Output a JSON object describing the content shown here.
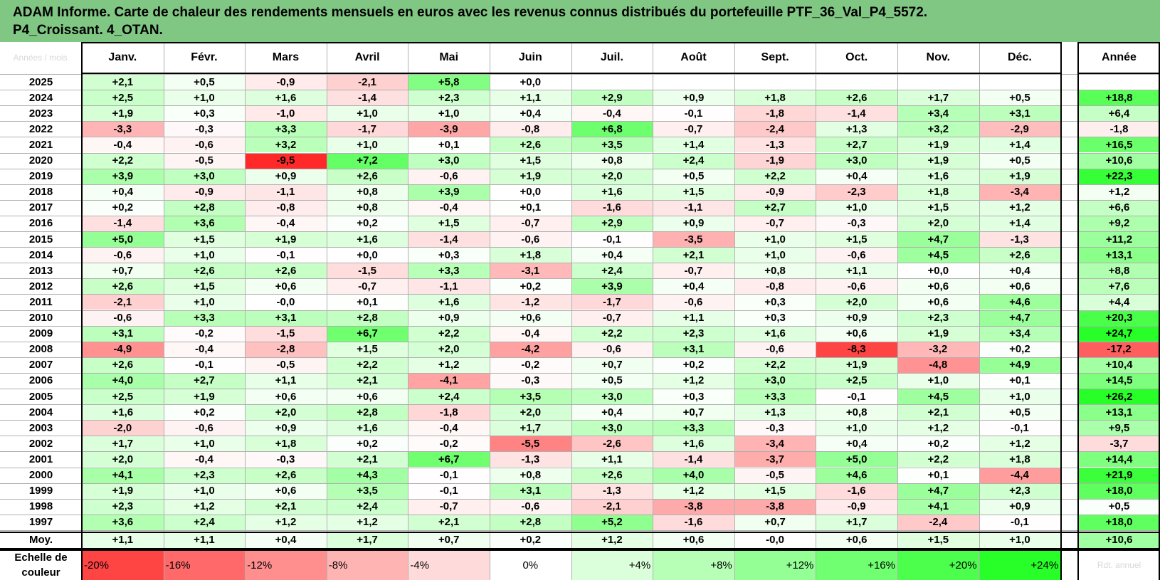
{
  "title_line1": "ADAM Informe. Carte de chaleur des rendements mensuels en euros avec les revenus connus distribués du portefeuille PTF_36_Val_P4_5572.",
  "title_line2": "P4_Croissant. 4_OTAN.",
  "corner_label": "Années / mois",
  "scale_label": "Echelle de couleur",
  "ghost_label": "Rdt. annuel",
  "chart_data": {
    "type": "heatmap",
    "columns": [
      "Janv.",
      "Févr.",
      "Mars",
      "Avril",
      "Mai",
      "Juin",
      "Juil.",
      "Août",
      "Sept.",
      "Oct.",
      "Nov.",
      "Déc."
    ],
    "year_column": "Année",
    "average_row_label": "Moy.",
    "rows": [
      {
        "label": "2025",
        "values": [
          "+2,1",
          "+0,5",
          "-0,9",
          "-2,1",
          "+5,8",
          "+0,0",
          "",
          "",
          "",
          "",
          "",
          ""
        ],
        "year": ""
      },
      {
        "label": "2024",
        "values": [
          "+2,5",
          "+1,0",
          "+1,6",
          "-1,4",
          "+2,3",
          "+1,1",
          "+2,9",
          "+0,9",
          "+1,8",
          "+2,6",
          "+1,7",
          "+0,5"
        ],
        "year": "+18,8"
      },
      {
        "label": "2023",
        "values": [
          "+1,9",
          "+0,3",
          "-1,0",
          "+1,0",
          "+1,0",
          "+0,4",
          "-0,4",
          "-0,1",
          "-1,8",
          "-1,4",
          "+3,4",
          "+3,1"
        ],
        "year": "+6,4"
      },
      {
        "label": "2022",
        "values": [
          "-3,3",
          "-0,3",
          "+3,3",
          "-1,7",
          "-3,9",
          "-0,8",
          "+6,8",
          "-0,7",
          "-2,4",
          "+1,3",
          "+3,2",
          "-2,9"
        ],
        "year": "-1,8"
      },
      {
        "label": "2021",
        "values": [
          "-0,4",
          "-0,6",
          "+3,2",
          "+1,0",
          "+0,1",
          "+2,6",
          "+3,5",
          "+1,4",
          "-1,3",
          "+2,7",
          "+1,9",
          "+1,4"
        ],
        "year": "+16,5"
      },
      {
        "label": "2020",
        "values": [
          "+2,2",
          "-0,5",
          "-9,5",
          "+7,2",
          "+3,0",
          "+1,5",
          "+0,8",
          "+2,4",
          "-1,9",
          "+3,0",
          "+1,9",
          "+0,5"
        ],
        "year": "+10,6"
      },
      {
        "label": "2019",
        "values": [
          "+3,9",
          "+3,0",
          "+0,9",
          "+2,6",
          "-0,6",
          "+1,9",
          "+2,0",
          "+0,5",
          "+2,2",
          "+0,4",
          "+1,6",
          "+1,9"
        ],
        "year": "+22,3"
      },
      {
        "label": "2018",
        "values": [
          "+0,4",
          "-0,9",
          "-1,1",
          "+0,8",
          "+3,9",
          "+0,0",
          "+1,6",
          "+1,5",
          "-0,9",
          "-2,3",
          "+1,8",
          "-3,4"
        ],
        "year": "+1,2"
      },
      {
        "label": "2017",
        "values": [
          "+0,2",
          "+2,8",
          "-0,8",
          "+0,8",
          "-0,4",
          "+0,1",
          "-1,6",
          "-1,1",
          "+2,7",
          "+1,0",
          "+1,5",
          "+1,2"
        ],
        "year": "+6,6"
      },
      {
        "label": "2016",
        "values": [
          "-1,4",
          "+3,6",
          "-0,4",
          "+0,2",
          "+1,5",
          "-0,7",
          "+2,9",
          "+0,9",
          "-0,7",
          "-0,3",
          "+2,0",
          "+1,4"
        ],
        "year": "+9,2"
      },
      {
        "label": "2015",
        "values": [
          "+5,0",
          "+1,5",
          "+1,9",
          "+1,6",
          "-1,4",
          "-0,6",
          "-0,1",
          "-3,5",
          "+1,0",
          "+1,5",
          "+4,7",
          "-1,3"
        ],
        "year": "+11,2"
      },
      {
        "label": "2014",
        "values": [
          "-0,6",
          "+1,0",
          "-0,1",
          "+0,0",
          "+0,3",
          "+1,8",
          "+0,4",
          "+2,1",
          "+1,0",
          "-0,6",
          "+4,5",
          "+2,6"
        ],
        "year": "+13,1"
      },
      {
        "label": "2013",
        "values": [
          "+0,7",
          "+2,6",
          "+2,6",
          "-1,5",
          "+3,3",
          "-3,1",
          "+2,4",
          "-0,7",
          "+0,8",
          "+1,1",
          "+0,0",
          "+0,4"
        ],
        "year": "+8,8"
      },
      {
        "label": "2012",
        "values": [
          "+2,6",
          "+1,5",
          "+0,6",
          "-0,7",
          "-1,1",
          "+0,2",
          "+3,9",
          "+0,4",
          "-0,8",
          "-0,6",
          "+0,6",
          "+0,6"
        ],
        "year": "+7,6"
      },
      {
        "label": "2011",
        "values": [
          "-2,1",
          "+1,0",
          "-0,0",
          "+0,1",
          "+1,6",
          "-1,2",
          "-1,7",
          "-0,6",
          "+0,3",
          "+2,0",
          "+0,6",
          "+4,6"
        ],
        "year": "+4,4"
      },
      {
        "label": "2010",
        "values": [
          "-0,6",
          "+3,3",
          "+3,1",
          "+2,8",
          "+0,9",
          "+0,6",
          "-0,7",
          "+1,1",
          "+0,3",
          "+0,9",
          "+2,3",
          "+4,7"
        ],
        "year": "+20,3"
      },
      {
        "label": "2009",
        "values": [
          "+3,1",
          "-0,2",
          "-1,5",
          "+6,7",
          "+2,2",
          "-0,4",
          "+2,2",
          "+2,3",
          "+1,6",
          "+0,6",
          "+1,9",
          "+3,4"
        ],
        "year": "+24,7"
      },
      {
        "label": "2008",
        "values": [
          "-4,9",
          "-0,4",
          "-2,8",
          "+1,5",
          "+2,0",
          "-4,2",
          "-0,6",
          "+3,1",
          "-0,6",
          "-8,3",
          "-3,2",
          "+0,2"
        ],
        "year": "-17,2"
      },
      {
        "label": "2007",
        "values": [
          "+2,6",
          "-0,1",
          "-0,5",
          "+2,2",
          "+1,2",
          "-0,2",
          "+0,7",
          "+0,2",
          "+2,2",
          "+1,9",
          "-4,8",
          "+4,9"
        ],
        "year": "+10,4"
      },
      {
        "label": "2006",
        "values": [
          "+4,0",
          "+2,7",
          "+1,1",
          "+2,1",
          "-4,1",
          "-0,3",
          "+0,5",
          "+1,2",
          "+3,0",
          "+2,5",
          "+1,0",
          "+0,1"
        ],
        "year": "+14,5"
      },
      {
        "label": "2005",
        "values": [
          "+2,5",
          "+1,9",
          "+0,6",
          "+0,6",
          "+2,4",
          "+3,5",
          "+3,0",
          "+0,3",
          "+3,3",
          "-0,1",
          "+4,5",
          "+1,0"
        ],
        "year": "+26,2"
      },
      {
        "label": "2004",
        "values": [
          "+1,6",
          "+0,2",
          "+2,0",
          "+2,8",
          "-1,8",
          "+2,0",
          "+0,4",
          "+0,7",
          "+1,3",
          "+0,8",
          "+2,1",
          "+0,5"
        ],
        "year": "+13,1"
      },
      {
        "label": "2003",
        "values": [
          "-2,0",
          "-0,6",
          "+0,9",
          "+1,6",
          "-0,4",
          "+1,7",
          "+3,0",
          "+3,3",
          "-0,3",
          "+1,0",
          "+1,2",
          "-0,1"
        ],
        "year": "+9,5"
      },
      {
        "label": "2002",
        "values": [
          "+1,7",
          "+1,0",
          "+1,8",
          "+0,2",
          "-0,2",
          "-5,5",
          "-2,6",
          "+1,6",
          "-3,4",
          "+0,4",
          "+0,2",
          "+1,2"
        ],
        "year": "-3,7"
      },
      {
        "label": "2001",
        "values": [
          "+2,0",
          "-0,4",
          "-0,3",
          "+2,1",
          "+6,7",
          "-1,3",
          "+1,1",
          "-1,4",
          "-3,7",
          "+5,0",
          "+2,2",
          "+1,8"
        ],
        "year": "+14,4"
      },
      {
        "label": "2000",
        "values": [
          "+4,1",
          "+2,3",
          "+2,6",
          "+4,3",
          "-0,1",
          "+0,8",
          "+2,6",
          "+4,0",
          "-0,5",
          "+4,6",
          "+0,1",
          "-4,4"
        ],
        "year": "+21,9"
      },
      {
        "label": "1999",
        "values": [
          "+1,9",
          "+1,0",
          "+0,6",
          "+3,5",
          "-0,1",
          "+3,1",
          "-1,3",
          "+1,2",
          "+1,5",
          "-1,6",
          "+4,7",
          "+2,3"
        ],
        "year": "+18,0"
      },
      {
        "label": "1998",
        "values": [
          "+2,3",
          "+1,2",
          "+2,1",
          "+2,4",
          "-0,7",
          "-0,6",
          "-2,1",
          "-3,8",
          "-3,8",
          "-0,9",
          "+4,1",
          "+0,9"
        ],
        "year": "+0,5"
      },
      {
        "label": "1997",
        "values": [
          "+3,6",
          "+2,4",
          "+1,2",
          "+1,2",
          "+2,1",
          "+2,8",
          "+5,2",
          "-1,6",
          "+0,7",
          "+1,7",
          "-2,4",
          "-0,1"
        ],
        "year": "+18,0"
      }
    ],
    "average": {
      "values": [
        "+1,1",
        "+1,1",
        "+0,4",
        "+1,7",
        "+0,7",
        "+0,2",
        "+1,2",
        "+0,6",
        "-0,0",
        "+0,6",
        "+1,5",
        "+1,0"
      ],
      "year": "+10,6"
    },
    "scale": [
      "-20%",
      "-16%",
      "-12%",
      "-8%",
      "-4%",
      "0%",
      "+4%",
      "+8%",
      "+12%",
      "+16%",
      "+20%",
      "+24%"
    ],
    "scale_values": [
      -20,
      -16,
      -12,
      -8,
      -4,
      0,
      4,
      8,
      12,
      16,
      20,
      24
    ]
  }
}
